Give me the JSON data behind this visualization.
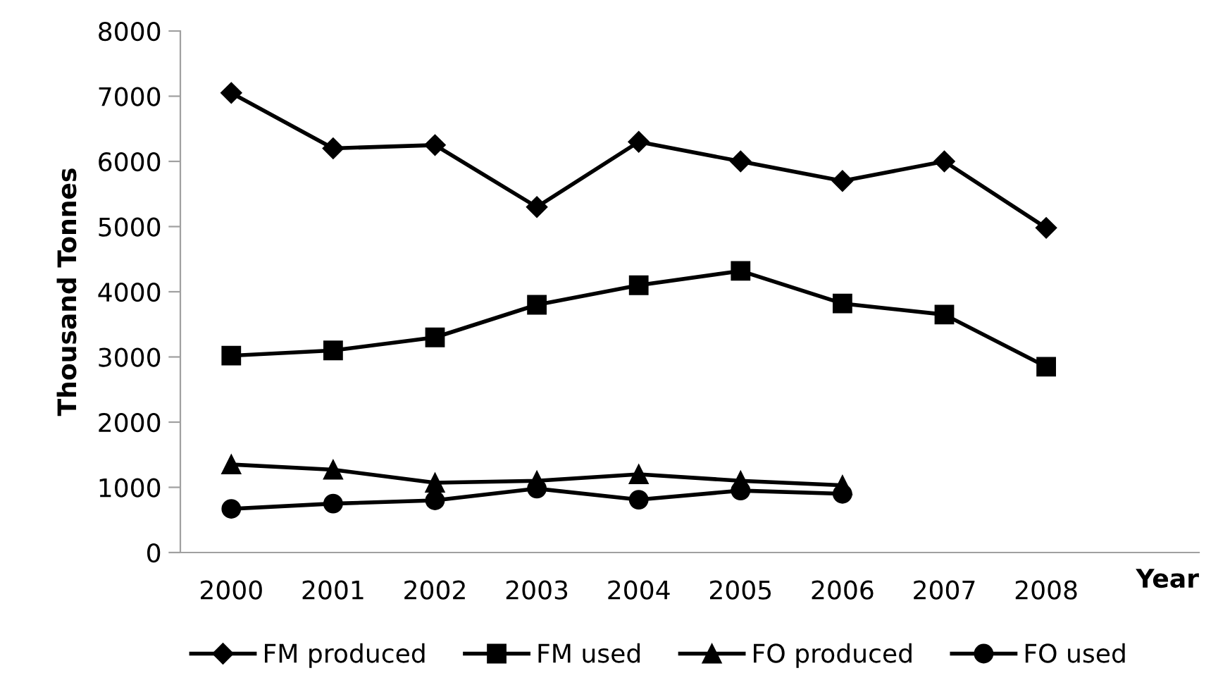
{
  "chart_data": {
    "type": "line",
    "ylabel": "Thousand Tonnes",
    "xlabel": "Year",
    "categories": [
      "2000",
      "2001",
      "2002",
      "2003",
      "2004",
      "2005",
      "2006",
      "2007",
      "2008",
      null
    ],
    "series": [
      {
        "name": "FM produced",
        "color": "#000000",
        "marker": "diamond",
        "values": [
          7050,
          6200,
          6250,
          5300,
          6300,
          6000,
          5700,
          6000,
          4980,
          null
        ]
      },
      {
        "name": "FM used",
        "color": "#000000",
        "marker": "square",
        "values": [
          3020,
          3100,
          3300,
          3800,
          4100,
          4320,
          3820,
          3650,
          2850,
          null
        ]
      },
      {
        "name": "FO produced",
        "color": "#000000",
        "marker": "triangle",
        "values": [
          1350,
          1270,
          1070,
          1100,
          1200,
          1100,
          1030,
          null,
          null,
          null
        ]
      },
      {
        "name": "FO used",
        "color": "#000000",
        "marker": "circle",
        "values": [
          670,
          750,
          800,
          980,
          810,
          950,
          900,
          null,
          null,
          null
        ]
      }
    ],
    "ylim": [
      0,
      8000
    ],
    "yticks": [
      0,
      1000,
      2000,
      3000,
      4000,
      5000,
      6000,
      7000,
      8000
    ],
    "grid": false,
    "legend": "bottom"
  }
}
